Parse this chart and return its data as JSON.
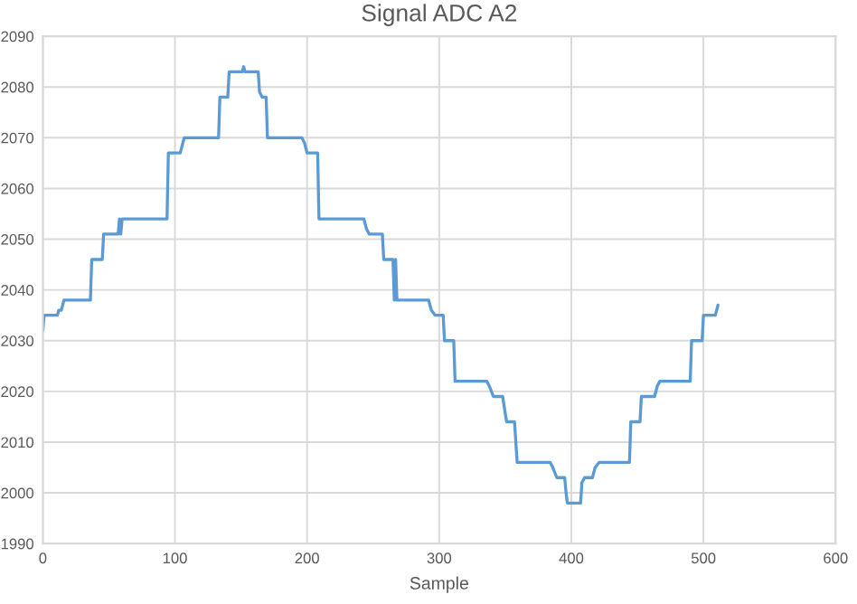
{
  "chart_data": {
    "type": "line",
    "title": "Signal ADC A2",
    "xlabel": "Sample",
    "x": [
      0,
      1,
      11,
      12,
      14,
      16,
      36,
      37,
      45,
      46,
      47,
      57,
      58,
      59,
      60,
      62,
      94,
      95,
      104,
      106,
      107,
      133,
      134,
      140,
      141,
      151,
      152,
      153,
      163,
      164,
      166,
      169,
      170,
      196,
      198,
      200,
      208,
      209,
      243,
      245,
      247,
      257,
      258,
      265,
      266,
      267,
      268,
      292,
      294,
      297,
      303,
      304,
      311,
      312,
      336,
      338,
      341,
      348,
      351,
      357,
      359,
      384,
      386,
      389,
      395,
      396,
      397,
      400,
      407,
      408,
      410,
      416,
      418,
      421,
      444,
      445,
      452,
      453,
      463,
      465,
      467,
      490,
      491,
      499,
      500,
      509,
      511
    ],
    "series": [
      {
        "color": "#5b9bd5",
        "values": [
          2032,
          2035,
          2035,
          2036,
          2036,
          2038,
          2038,
          2046,
          2046,
          2051,
          2051,
          2051,
          2054,
          2051,
          2054,
          2054,
          2054,
          2067,
          2067,
          2069,
          2070,
          2070,
          2078,
          2078,
          2083,
          2083,
          2084,
          2083,
          2083,
          2079,
          2078,
          2078,
          2070,
          2070,
          2069,
          2067,
          2067,
          2054,
          2054,
          2052,
          2051,
          2051,
          2046,
          2046,
          2038,
          2046,
          2038,
          2038,
          2036,
          2035,
          2035,
          2030,
          2030,
          2022,
          2022,
          2021,
          2019,
          2019,
          2014,
          2014,
          2006,
          2006,
          2005,
          2003,
          2003,
          2000,
          1998,
          1998,
          1998,
          2002,
          2003,
          2003,
          2005,
          2006,
          2006,
          2014,
          2014,
          2019,
          2019,
          2021,
          2022,
          2022,
          2030,
          2030,
          2035,
          2035,
          2037
        ]
      }
    ],
    "xlim": [
      0,
      600
    ],
    "xticks": [
      0,
      100,
      200,
      300,
      400,
      500,
      600
    ],
    "ylim": [
      1990,
      2090
    ],
    "yticks": [
      1990,
      2000,
      2010,
      2020,
      2030,
      2040,
      2050,
      2060,
      2070,
      2080,
      2090
    ],
    "grid": true,
    "marker": "none",
    "line_style": "solid"
  }
}
